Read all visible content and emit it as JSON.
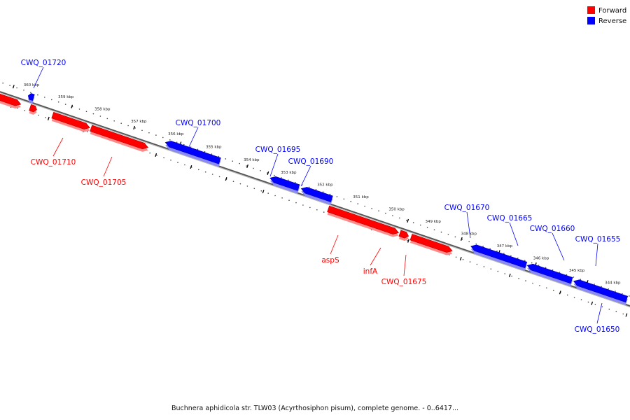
{
  "legend": {
    "forward_label": "Forward",
    "reverse_label": "Reverse",
    "forward_color": "#ff0000",
    "reverse_color": "#0000ff"
  },
  "caption": "Buchnera aphidicola str. TLW03 (Acyrthosiphon pisum), complete genome. - 0..6417...",
  "ticks": [
    {
      "label": "360 kbp"
    },
    {
      "label": "359 kbp"
    },
    {
      "label": "358 kbp"
    },
    {
      "label": "357 kbp"
    },
    {
      "label": "356 kbp"
    },
    {
      "label": "355 kbp"
    },
    {
      "label": "354 kbp"
    },
    {
      "label": "353 kbp"
    },
    {
      "label": "352 kbp"
    },
    {
      "label": "351 kbp"
    },
    {
      "label": "350 kbp"
    },
    {
      "label": "349 kbp"
    },
    {
      "label": "348 kbp"
    },
    {
      "label": "347 kbp"
    },
    {
      "label": "346 kbp"
    },
    {
      "label": "345 kbp"
    },
    {
      "label": "344 kbp"
    }
  ],
  "genes": [
    {
      "label": "",
      "strand": "forward"
    },
    {
      "label": "CWQ_01720",
      "strand": "reverse"
    },
    {
      "label": "",
      "strand": "forward"
    },
    {
      "label": "CWQ_01710",
      "strand": "forward"
    },
    {
      "label": "CWQ_01705",
      "strand": "forward"
    },
    {
      "label": "CWQ_01700",
      "strand": "reverse"
    },
    {
      "label": "CWQ_01695",
      "strand": "reverse"
    },
    {
      "label": "CWQ_01690",
      "strand": "reverse"
    },
    {
      "label": "aspS",
      "strand": "forward"
    },
    {
      "label": "infA",
      "strand": "forward"
    },
    {
      "label": "CWQ_01675",
      "strand": "forward"
    },
    {
      "label": "CWQ_01670",
      "strand": "reverse"
    },
    {
      "label": "CWQ_01665",
      "strand": "reverse"
    },
    {
      "label": "CWQ_01660",
      "strand": "reverse"
    },
    {
      "label": "CWQ_01655",
      "strand": "reverse"
    },
    {
      "label": "CWQ_01650",
      "strand": "reverse"
    },
    {
      "label": "",
      "strand": "reverse"
    }
  ]
}
